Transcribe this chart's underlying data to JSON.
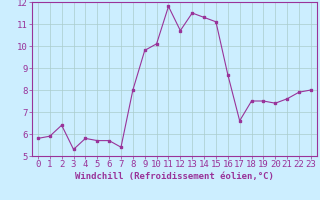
{
  "x": [
    0,
    1,
    2,
    3,
    4,
    5,
    6,
    7,
    8,
    9,
    10,
    11,
    12,
    13,
    14,
    15,
    16,
    17,
    18,
    19,
    20,
    21,
    22,
    23
  ],
  "y": [
    5.8,
    5.9,
    6.4,
    5.3,
    5.8,
    5.7,
    5.7,
    5.4,
    8.0,
    9.8,
    10.1,
    11.8,
    10.7,
    11.5,
    11.3,
    11.1,
    8.7,
    6.6,
    7.5,
    7.5,
    7.4,
    7.6,
    7.9,
    8.0
  ],
  "line_color": "#993399",
  "marker_color": "#993399",
  "bg_color": "#cceeff",
  "grid_color": "#aacccc",
  "xlabel": "Windchill (Refroidissement éolien,°C)",
  "xlim": [
    -0.5,
    23.5
  ],
  "ylim": [
    5.0,
    12.0
  ],
  "yticks": [
    5,
    6,
    7,
    8,
    9,
    10,
    11,
    12
  ],
  "xticks": [
    0,
    1,
    2,
    3,
    4,
    5,
    6,
    7,
    8,
    9,
    10,
    11,
    12,
    13,
    14,
    15,
    16,
    17,
    18,
    19,
    20,
    21,
    22,
    23
  ],
  "tick_color": "#993399",
  "label_color": "#993399",
  "axis_color": "#993399",
  "tick_font_size": 6.5,
  "label_font_size": 6.5
}
